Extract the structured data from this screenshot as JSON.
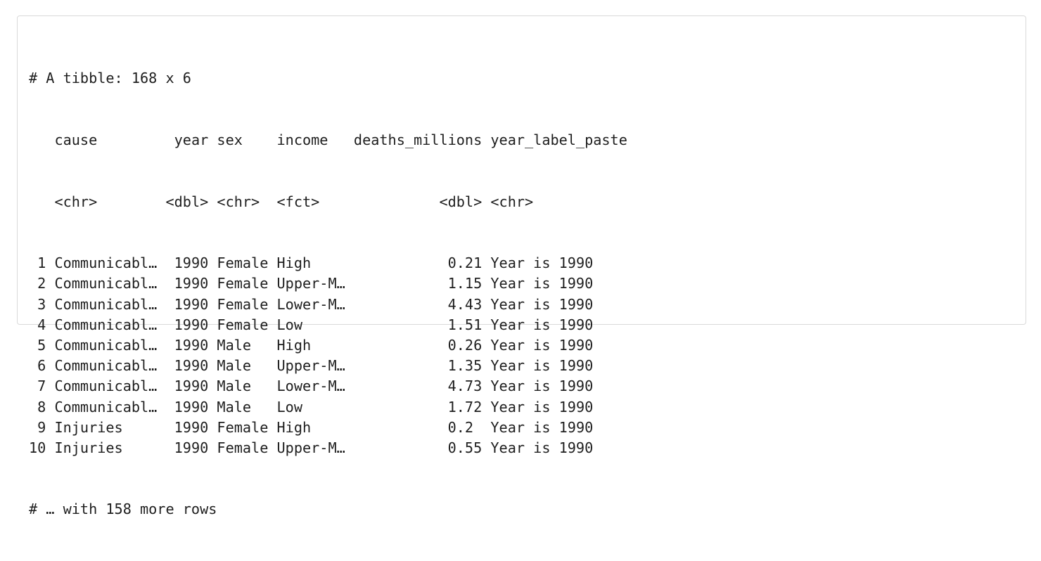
{
  "header": {
    "title": "# A tibble: 168 x 6"
  },
  "table": {
    "columns": [
      {
        "name": "cause",
        "type": "<chr>"
      },
      {
        "name": "year",
        "type": "<dbl>"
      },
      {
        "name": "sex",
        "type": "<chr>"
      },
      {
        "name": "income",
        "type": "<fct>"
      },
      {
        "name": "deaths_millions",
        "type": "<dbl>"
      },
      {
        "name": "year_label_paste",
        "type": "<chr>"
      }
    ],
    "rows": [
      {
        "index": "1",
        "cause": "Communicabl…",
        "year": "1990",
        "sex": "Female",
        "income": "High",
        "deaths_millions": "0.21",
        "year_label_paste": "Year is 1990"
      },
      {
        "index": "2",
        "cause": "Communicabl…",
        "year": "1990",
        "sex": "Female",
        "income": "Upper-M…",
        "deaths_millions": "1.15",
        "year_label_paste": "Year is 1990"
      },
      {
        "index": "3",
        "cause": "Communicabl…",
        "year": "1990",
        "sex": "Female",
        "income": "Lower-M…",
        "deaths_millions": "4.43",
        "year_label_paste": "Year is 1990"
      },
      {
        "index": "4",
        "cause": "Communicabl…",
        "year": "1990",
        "sex": "Female",
        "income": "Low",
        "deaths_millions": "1.51",
        "year_label_paste": "Year is 1990"
      },
      {
        "index": "5",
        "cause": "Communicabl…",
        "year": "1990",
        "sex": "Male",
        "income": "High",
        "deaths_millions": "0.26",
        "year_label_paste": "Year is 1990"
      },
      {
        "index": "6",
        "cause": "Communicabl…",
        "year": "1990",
        "sex": "Male",
        "income": "Upper-M…",
        "deaths_millions": "1.35",
        "year_label_paste": "Year is 1990"
      },
      {
        "index": "7",
        "cause": "Communicabl…",
        "year": "1990",
        "sex": "Male",
        "income": "Lower-M…",
        "deaths_millions": "4.73",
        "year_label_paste": "Year is 1990"
      },
      {
        "index": "8",
        "cause": "Communicabl…",
        "year": "1990",
        "sex": "Male",
        "income": "Low",
        "deaths_millions": "1.72",
        "year_label_paste": "Year is 1990"
      },
      {
        "index": "9",
        "cause": "Injuries",
        "year": "1990",
        "sex": "Female",
        "income": "High",
        "deaths_millions": "0.2",
        "year_label_paste": "Year is 1990"
      },
      {
        "index": "10",
        "cause": "Injuries",
        "year": "1990",
        "sex": "Female",
        "income": "Upper-M…",
        "deaths_millions": "0.55",
        "year_label_paste": "Year is 1990"
      }
    ]
  },
  "footer": {
    "more_rows": "# … with 158 more rows"
  }
}
